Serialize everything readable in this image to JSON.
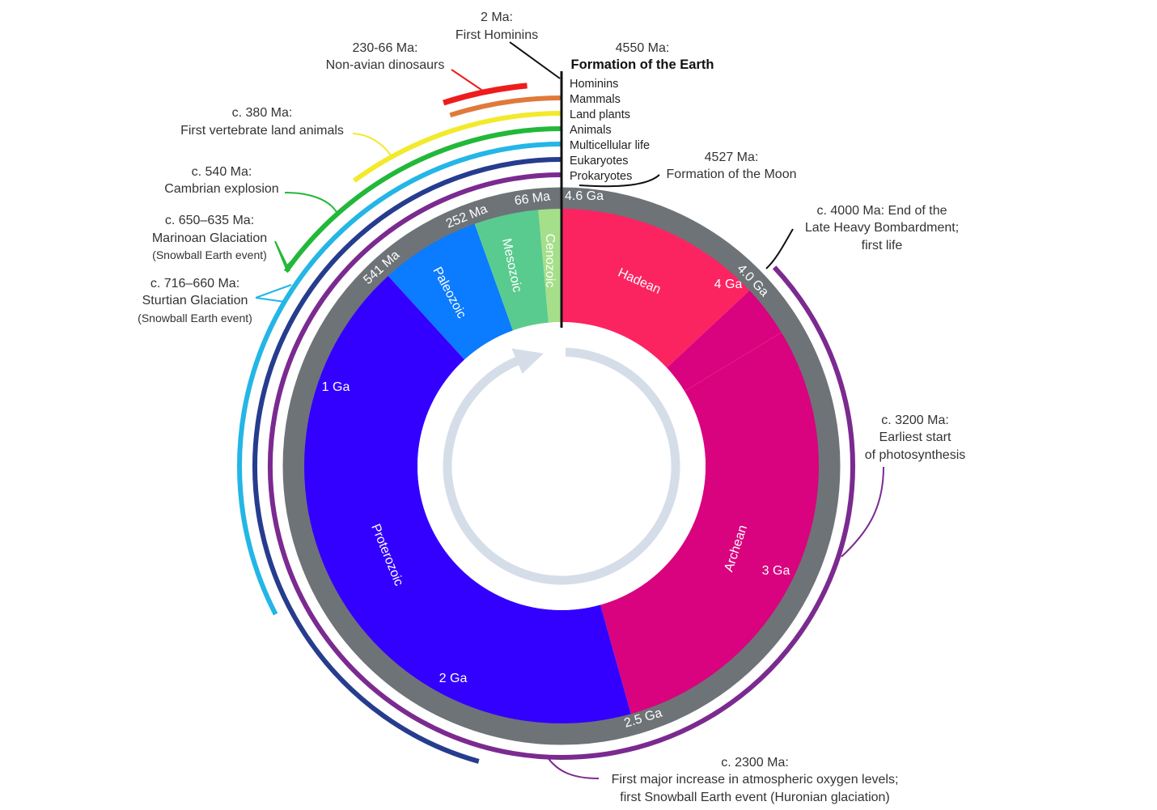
{
  "timeline": {
    "total_ma": 4600,
    "direction": "clockwise from top"
  },
  "eras": [
    {
      "name": "Hadean",
      "start_ma": 4600,
      "end_ma": 4000,
      "color": "#FB2461"
    },
    {
      "name": "Archean",
      "start_ma": 4000,
      "end_ma": 2500,
      "color": "#D9027F"
    },
    {
      "name": "Proterozoic",
      "start_ma": 2500,
      "end_ma": 541,
      "color": "#3300FF"
    },
    {
      "name": "Paleozoic",
      "start_ma": 541,
      "end_ma": 252,
      "color": "#0B7BFF"
    },
    {
      "name": "Mesozoic",
      "start_ma": 252,
      "end_ma": 66,
      "color": "#5ACB8E"
    },
    {
      "name": "Cenozoic",
      "start_ma": 66,
      "end_ma": 0,
      "color": "#A6DF8A"
    }
  ],
  "ring_labels": [
    "4.6 Ga",
    "66 Ma",
    "252 Ma",
    "541 Ma",
    "2.5 Ga",
    "4.0 Ga"
  ],
  "inner_labels": [
    "4 Ga",
    "3 Ga",
    "2 Ga",
    "1 Ga"
  ],
  "ring_color": "#6E7378",
  "arrow_color": "#D5DEE8",
  "life_arcs": [
    {
      "name": "Hominins",
      "start_ma": 2,
      "end_ma": 0,
      "color": "#111111"
    },
    {
      "name": "Mammals",
      "start_ma": 225,
      "end_ma": 0,
      "color": "#E07A3A"
    },
    {
      "name": "Land plants",
      "start_ma": 460,
      "end_ma": 0,
      "color": "#F2EA2B"
    },
    {
      "name": "Animals",
      "start_ma": 700,
      "end_ma": 0,
      "color": "#22B83A"
    },
    {
      "name": "Multicellular life",
      "start_ma": 1500,
      "end_ma": 0,
      "color": "#23B6E6"
    },
    {
      "name": "Eukaryotes",
      "start_ma": 2100,
      "end_ma": 0,
      "color": "#263C8E"
    },
    {
      "name": "Prokaryotes",
      "start_ma": 4000,
      "end_ma": 0,
      "color": "#7B2A90"
    }
  ],
  "dinosaur_arc": {
    "start_ma": 230,
    "end_ma": 66,
    "color": "#EE1C1C"
  },
  "annotations": {
    "hominins": {
      "date": "2 Ma:",
      "text": "First Hominins"
    },
    "earth": {
      "date": "4550 Ma:",
      "text": "Formation of the Earth"
    },
    "moon": {
      "date": "4527 Ma:",
      "text": "Formation of the Moon"
    },
    "dinosaurs": {
      "date": "230-66 Ma:",
      "text": "Non-avian dinosaurs"
    },
    "vertebrates": {
      "date": "c. 380 Ma:",
      "text": "First vertebrate land animals"
    },
    "cambrian": {
      "date": "c. 540 Ma:",
      "text": "Cambrian explosion"
    },
    "marinoan": {
      "date": "c. 650–635 Ma:",
      "text": "Marinoan Glaciation",
      "note": "(Snowball Earth event)"
    },
    "sturtian": {
      "date": "c. 716–660 Ma:",
      "text": "Sturtian Glaciation",
      "note": "(Snowball Earth event)"
    },
    "bombardment": {
      "line1": "c. 4000 Ma: End of the",
      "line2": "Late Heavy Bombardment;",
      "line3": "first life"
    },
    "photosynthesis": {
      "date": "c. 3200 Ma:",
      "line2": "Earliest start",
      "line3": "of photosynthesis"
    },
    "oxygen": {
      "date": "c. 2300 Ma:",
      "line2": "First major increase in atmospheric oxygen levels;",
      "line3": "first Snowball Earth event (Huronian glaciation)"
    }
  }
}
